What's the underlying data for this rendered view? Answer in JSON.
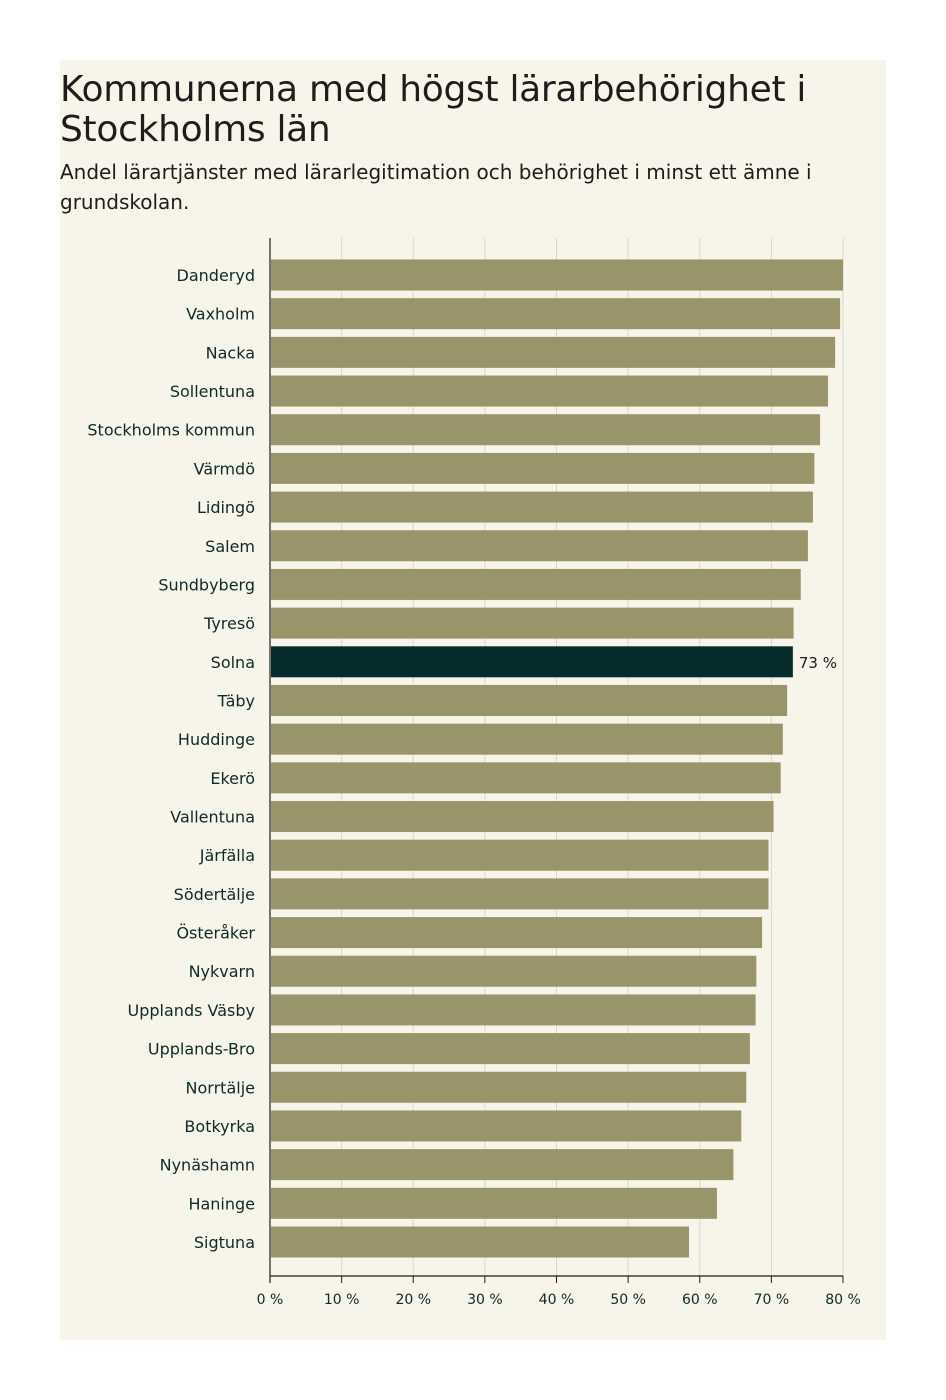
{
  "title": "Kommunerna med högst lärarbehörighet i Stockholms län",
  "subtitle": "Andel lärartjänster med lärarlegitimation och behörighet i minst ett ämne i grundskolan.",
  "colors": {
    "bar": "#99946a",
    "highlight": "#062b2b",
    "background": "#f7f5ea",
    "grid": "#d9d6c7"
  },
  "chart_data": {
    "type": "bar",
    "orientation": "horizontal",
    "title": "Kommunerna med högst lärarbehörighet i Stockholms län",
    "subtitle": "Andel lärartjänster med lärarlegitimation och behörighet i minst ett ämne i grundskolan.",
    "xlabel": "",
    "ylabel": "",
    "xlim": [
      0,
      80
    ],
    "xticks": [
      0,
      10,
      20,
      30,
      40,
      50,
      60,
      70,
      80
    ],
    "xtick_labels": [
      "0 %",
      "10 %",
      "20 %",
      "30 %",
      "40 %",
      "50 %",
      "60 %",
      "70 %",
      "80 %"
    ],
    "grid": true,
    "highlight": "Solna",
    "annotation": {
      "category": "Solna",
      "text": "73 %"
    },
    "categories": [
      "Danderyd",
      "Vaxholm",
      "Nacka",
      "Sollentuna",
      "Stockholms kommun",
      "Värmdö",
      "Lidingö",
      "Salem",
      "Sundbyberg",
      "Tyresö",
      "Solna",
      "Täby",
      "Huddinge",
      "Ekerö",
      "Vallentuna",
      "Järfälla",
      "Södertälje",
      "Österåker",
      "Nykvarn",
      "Upplands Väsby",
      "Upplands-Bro",
      "Norrtälje",
      "Botkyrka",
      "Nynäshamn",
      "Haninge",
      "Sigtuna"
    ],
    "values": [
      80.0,
      79.6,
      78.9,
      77.9,
      76.8,
      76.0,
      75.8,
      75.1,
      74.1,
      73.1,
      73.0,
      72.2,
      71.6,
      71.3,
      70.3,
      69.6,
      69.6,
      68.7,
      67.9,
      67.8,
      67.0,
      66.5,
      65.8,
      64.7,
      62.4,
      58.5
    ]
  }
}
